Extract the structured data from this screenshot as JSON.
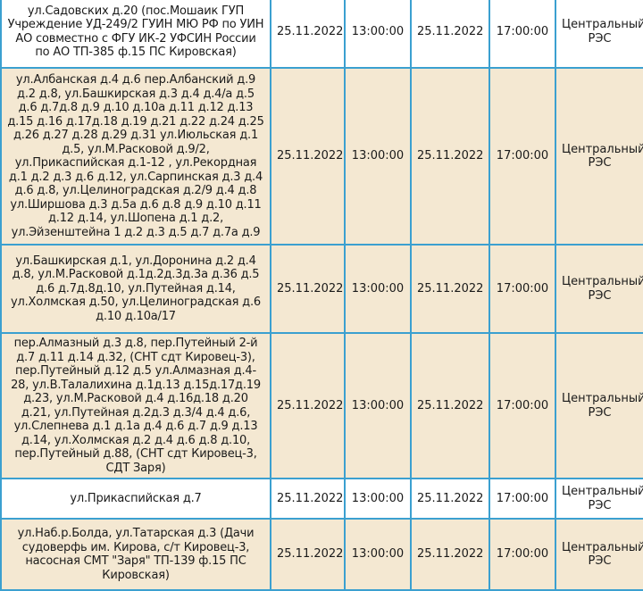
{
  "rows": [
    {
      "address": "ул.Садовских д.20 (пос.Мошаик ГУП Учреждение УД-249/2 ГУИН МЮ РФ по УИН АО совместно с ФГУ ИК-2 УФСИН России по АО ТП-385 ф.15 ПС Кировская)",
      "start_date": "25.11.2022",
      "start_time": "13:00:00",
      "end_date": "25.11.2022",
      "end_time": "17:00:00",
      "district": "Центральный РЭС"
    },
    {
      "address": "ул.Албанская д.4 д.6 пер.Албанский д.9 д.2 д.8, ул.Башкирская д.3 д.4 д.4/а д.5 д.6 д.7д.8 д.9 д.10 д.10а д.11 д.12 д.13 д.15 д.16 д.17д.18 д.19 д.21 д.22 д.24 д.25 д.26 д.27 д.28 д.29 д.31 ул.Июльская д.1 д.5, ул.М.Расковой д.9/2, ул.Прикаспийская д.1-12 , ул.Рекордная д.1 д.2 д.3 д.6 д.12, ул.Сарпинская д.3 д.4 д.6 д.8, ул.Целиноградская д.2/9 д.4 д.8 ул.Ширшова д.3 д.5а д.6 д.8 д.9 д.10 д.11 д.12 д.14, ул.Шопена д.1 д.2, ул.Эйзенштейна 1 д.2 д.3 д.5 д.7 д.7а д.9",
      "start_date": "25.11.2022",
      "start_time": "13:00:00",
      "end_date": "25.11.2022",
      "end_time": "17:00:00",
      "district": "Центральный РЭС"
    },
    {
      "address": "ул.Башкирская д.1, ул.Доронина д.2 д.4 д.8, ул.М.Расковой д.1д.2д.3д.3а д.36 д.5 д.6 д.7д.8д.10, ул.Путейная д.14, ул.Холмская д.50, ул.Целиноградская д.6 д.10 д.10а/17",
      "start_date": "25.11.2022",
      "start_time": "13:00:00",
      "end_date": "25.11.2022",
      "end_time": "17:00:00",
      "district": "Центральный РЭС"
    },
    {
      "address": "пер.Алмазный д.3 д.8, пер.Путейный 2-й д.7 д.11 д.14 д.32, (СНТ сдт Кировец-3), пер.Путейный д.12 д.5 ул.Алмазная д.4-28, ул.В.Талалихина д.1д.13 д.15д.17д.19 д.23, ул.М.Расковой д.4 д.16д.18 д.20 д.21, ул.Путейная д.2д.3 д.3/4 д.4 д.6, ул.Слепнева д.1 д.1а д.4 д.6 д.7 д.9 д.13 д.14, ул.Холмская д.2 д.4 д.6 д.8 д.10, пер.Путейный д.88, (СНТ сдт Кировец-3, СДТ Заря)",
      "start_date": "25.11.2022",
      "start_time": "13:00:00",
      "end_date": "25.11.2022",
      "end_time": "17:00:00",
      "district": "Центральный РЭС"
    },
    {
      "address": "ул.Прикаспийская д.7",
      "start_date": "25.11.2022",
      "start_time": "13:00:00",
      "end_date": "25.11.2022",
      "end_time": "17:00:00",
      "district": "Центральный РЭС"
    },
    {
      "address": "ул.Наб.р.Болда, ул.Татарская д.3 (Дачи судоверфь им. Кирова, с/т Кировец-3, насосная СМТ \"Заря\" ТП-139 ф.15 ПС Кировская)",
      "start_date": "25.11.2022",
      "start_time": "13:00:00",
      "end_date": "25.11.2022",
      "end_time": "17:00:00",
      "district": "Центральный РЭС"
    }
  ],
  "colors": {
    "border": "#3ba0d0",
    "row_odd": "#ffffff",
    "row_even": "#f4e8d2"
  }
}
